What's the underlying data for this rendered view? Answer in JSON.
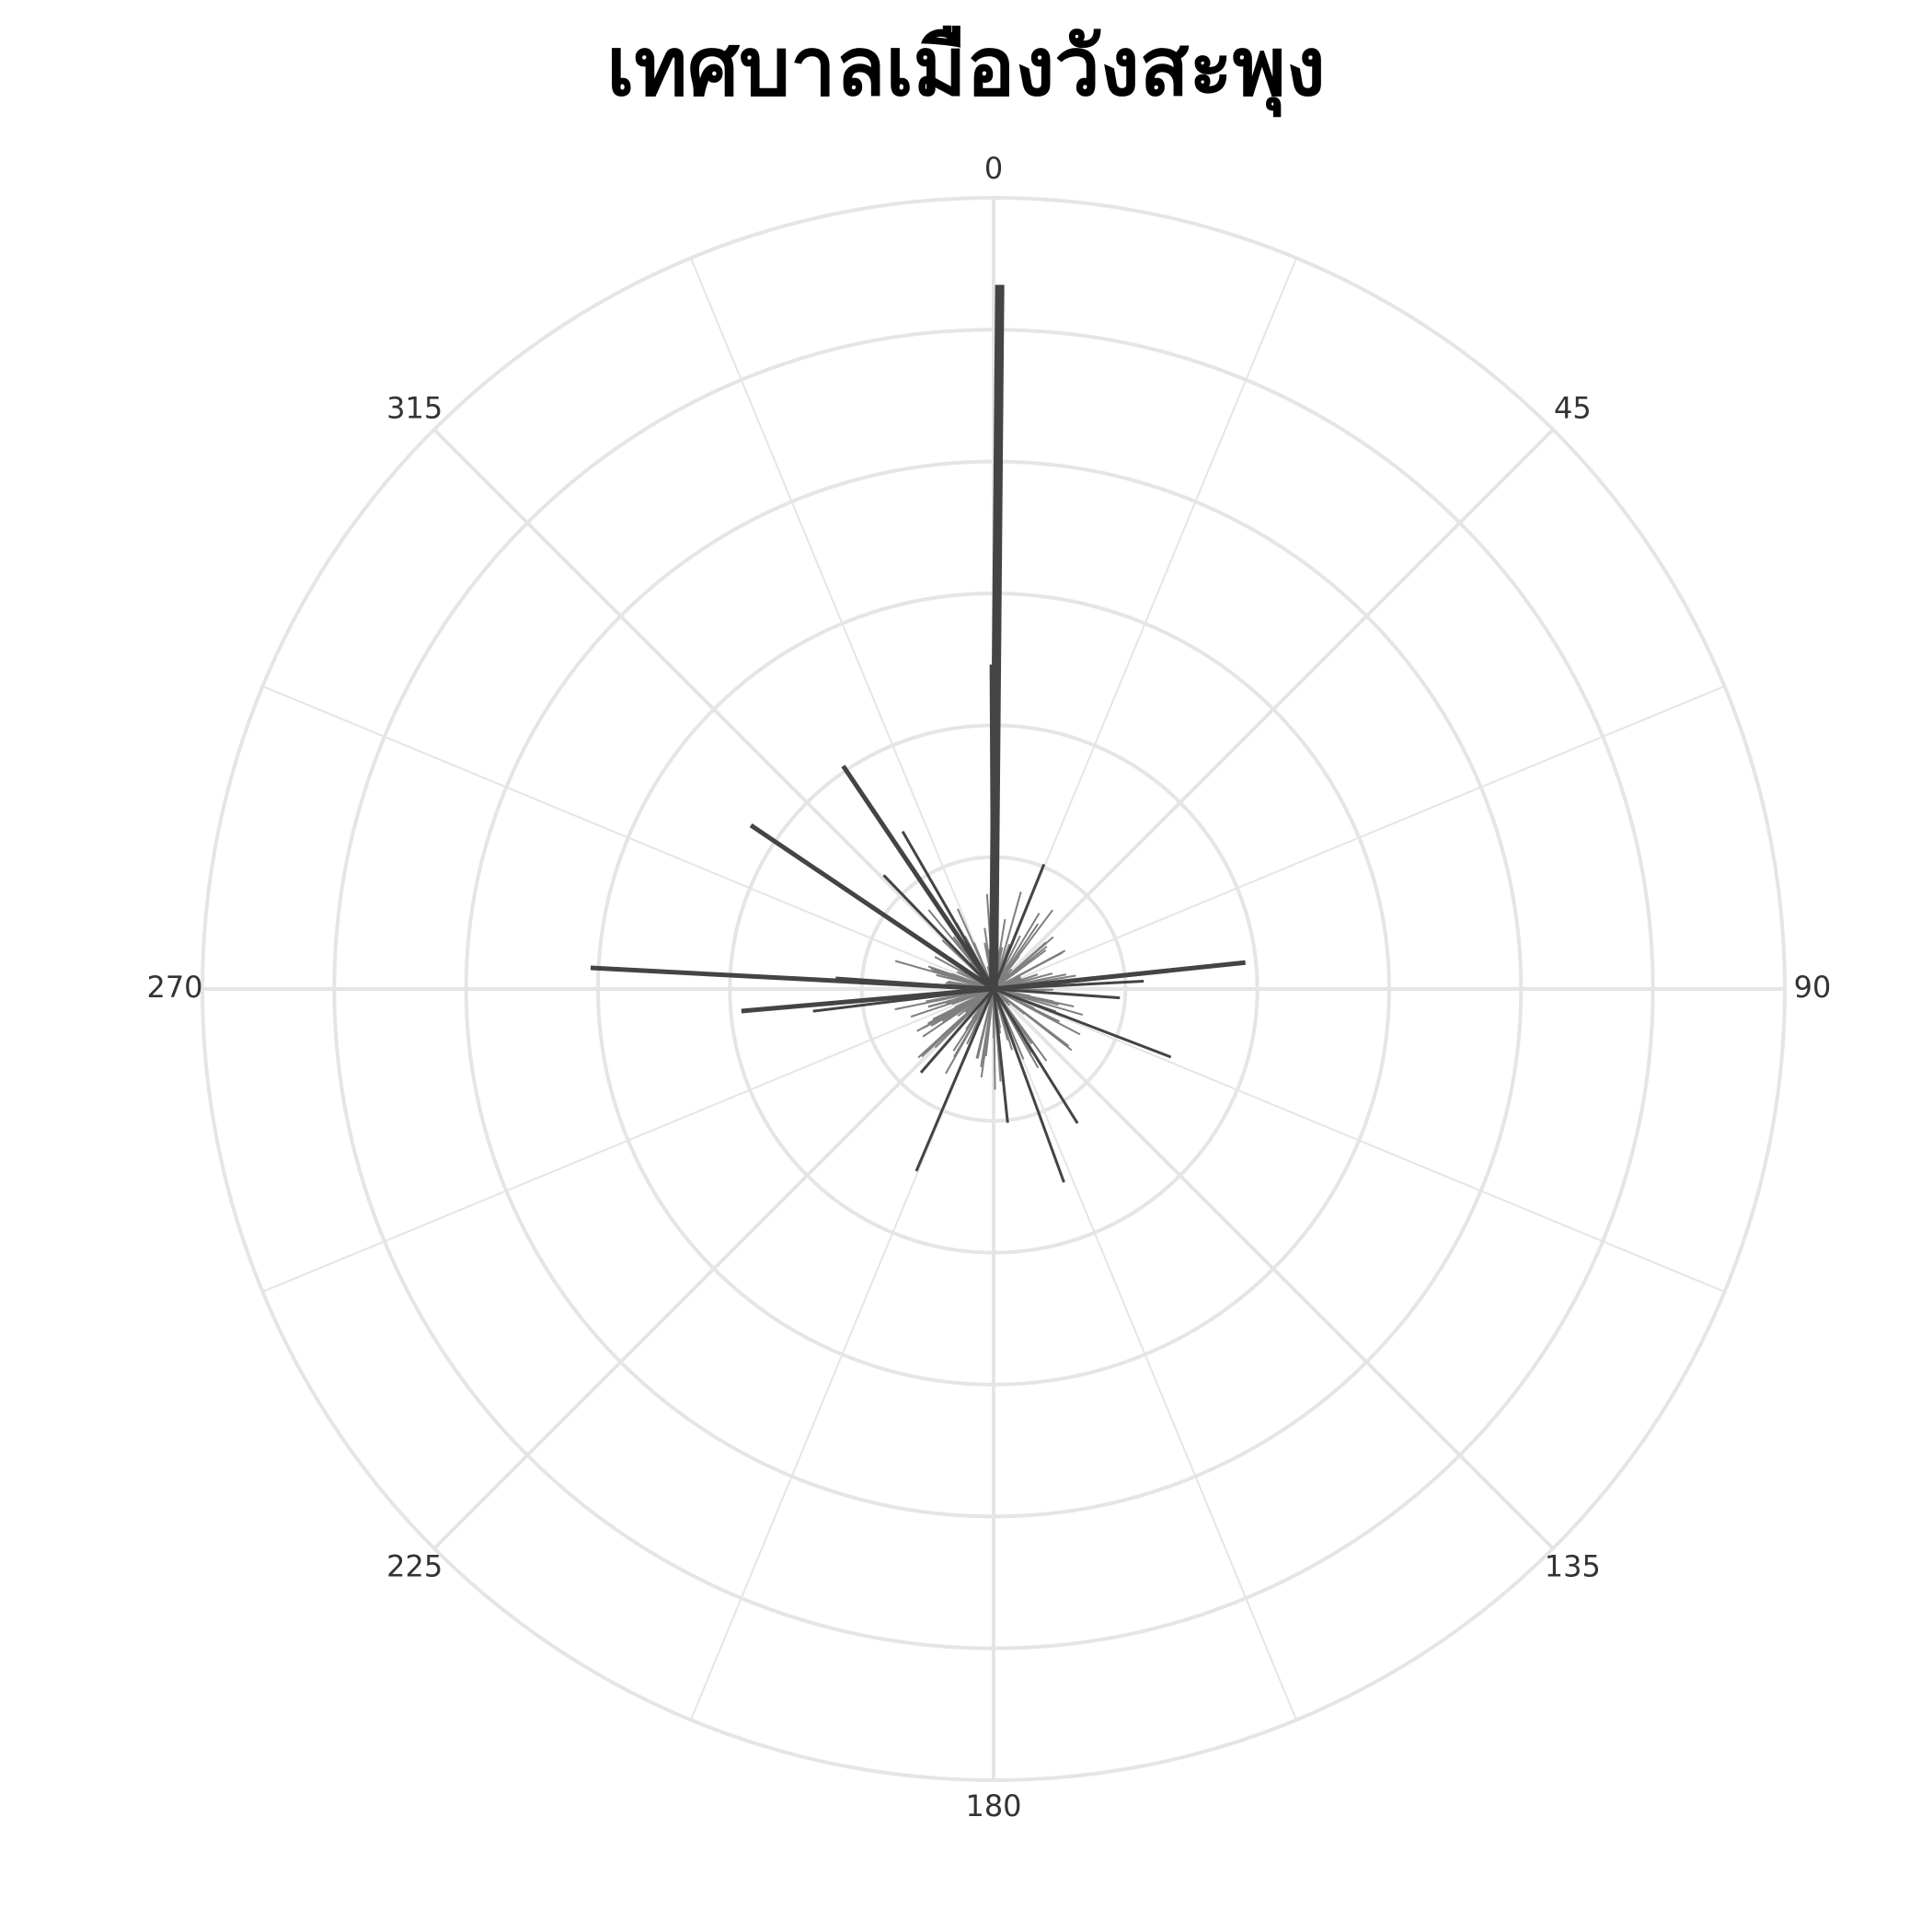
{
  "chart_data": {
    "type": "polar-bar",
    "title": "เทศบาลเมืองวังสะพุง",
    "angular_ticks": [
      "0",
      "45",
      "90",
      "135",
      "180",
      "225",
      "270",
      "315"
    ],
    "angular_tick_values": [
      0,
      45,
      90,
      135,
      180,
      225,
      270,
      315
    ],
    "radial_gridlines": 6,
    "spoke_count": 16,
    "grid": true,
    "bar_color": "#444444",
    "minor_bar_color": "#7f7f7f",
    "grid_color": "#e5e5e5",
    "radial_range": [
      0,
      10
    ],
    "major_bars": [
      {
        "angle": 0.5,
        "value": 8.9
      },
      {
        "angle": 359.7,
        "value": 4.1
      },
      {
        "angle": 326,
        "value": 3.4
      },
      {
        "angle": 304,
        "value": 3.7
      },
      {
        "angle": 273,
        "value": 5.1
      },
      {
        "angle": 274,
        "value": 2.0
      },
      {
        "angle": 265,
        "value": 3.2
      },
      {
        "angle": 263,
        "value": 2.3
      },
      {
        "angle": 84,
        "value": 3.2
      },
      {
        "angle": 87,
        "value": 1.9
      },
      {
        "angle": 111,
        "value": 2.4
      },
      {
        "angle": 160,
        "value": 2.6
      },
      {
        "angle": 203,
        "value": 2.5
      },
      {
        "angle": 148,
        "value": 2.0
      },
      {
        "angle": 221,
        "value": 1.4
      },
      {
        "angle": 316,
        "value": 2.0
      },
      {
        "angle": 330,
        "value": 2.3
      },
      {
        "angle": 22,
        "value": 1.7
      },
      {
        "angle": 94,
        "value": 1.6
      },
      {
        "angle": 174,
        "value": 1.7
      }
    ],
    "minor_bar_count": 300,
    "minor_bar_max": 1.3
  }
}
